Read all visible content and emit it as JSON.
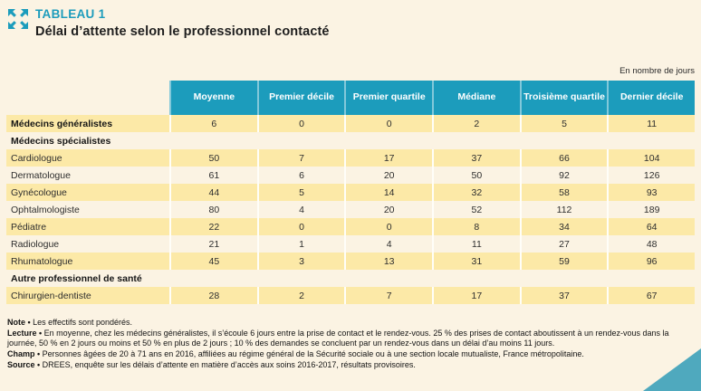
{
  "page": {
    "kicker": "TABLEAU 1",
    "title": "Délai d’attente selon le professionnel contacté",
    "unit_label": "En nombre de jours"
  },
  "colors": {
    "accent_teal": "#1C9CBC",
    "row_yellow": "#FCE9A7",
    "background_cream": "#FBF3E3",
    "corner_triangle": "#4FA9BE",
    "header_text": "#FFFFFF"
  },
  "icons": {
    "expand_icon": "four-arrows-expand"
  },
  "chart_data": {
    "type": "table",
    "title": "Délai d’attente selon le professionnel contacté",
    "unit": "En nombre de jours",
    "columns": [
      "Moyenne",
      "Premier décile",
      "Premier quartile",
      "Médiane",
      "Troisième quartile",
      "Dernier décile"
    ],
    "rows": [
      {
        "label": "Médecins généralistes",
        "bold": true,
        "section": false,
        "shaded": true,
        "values": [
          6,
          0,
          0,
          2,
          5,
          11
        ]
      },
      {
        "label": "Médecins spécialistes",
        "bold": true,
        "section": true,
        "shaded": false,
        "values": []
      },
      {
        "label": "Cardiologue",
        "bold": false,
        "section": false,
        "shaded": true,
        "values": [
          50,
          7,
          17,
          37,
          66,
          104
        ]
      },
      {
        "label": "Dermatologue",
        "bold": false,
        "section": false,
        "shaded": false,
        "values": [
          61,
          6,
          20,
          50,
          92,
          126
        ]
      },
      {
        "label": "Gynécologue",
        "bold": false,
        "section": false,
        "shaded": true,
        "values": [
          44,
          5,
          14,
          32,
          58,
          93
        ]
      },
      {
        "label": "Ophtalmologiste",
        "bold": false,
        "section": false,
        "shaded": false,
        "values": [
          80,
          4,
          20,
          52,
          112,
          189
        ]
      },
      {
        "label": "Pédiatre",
        "bold": false,
        "section": false,
        "shaded": true,
        "values": [
          22,
          0,
          0,
          8,
          34,
          64
        ]
      },
      {
        "label": "Radiologue",
        "bold": false,
        "section": false,
        "shaded": false,
        "values": [
          21,
          1,
          4,
          11,
          27,
          48
        ]
      },
      {
        "label": "Rhumatologue",
        "bold": false,
        "section": false,
        "shaded": true,
        "values": [
          45,
          3,
          13,
          31,
          59,
          96
        ]
      },
      {
        "label": "Autre professionnel de santé",
        "bold": true,
        "section": true,
        "shaded": false,
        "values": []
      },
      {
        "label": "Chirurgien-dentiste",
        "bold": false,
        "section": false,
        "shaded": true,
        "values": [
          28,
          2,
          7,
          17,
          37,
          67
        ]
      }
    ]
  },
  "notes_bullet": "•",
  "notes": [
    {
      "label": "Note",
      "text": "Les effectifs sont pondérés."
    },
    {
      "label": "Lecture",
      "text": "En moyenne, chez les médecins généralistes, il s’écoule 6 jours entre la prise de contact et le rendez-vous. 25 % des prises de contact aboutissent à un rendez-vous dans la journée, 50 % en 2 jours ou moins et 50 % en plus de 2 jours ; 10 % des demandes se concluent par un rendez-vous dans un délai d’au moins 11 jours."
    },
    {
      "label": "Champ",
      "text": "Personnes âgées de 20 à 71 ans en 2016, affiliées au régime général de la Sécurité sociale ou à une section locale mutualiste, France métropolitaine."
    },
    {
      "label": "Source",
      "text": "DREES, enquête sur les délais d’attente en matière d’accès aux soins 2016-2017, résultats provisoires."
    }
  ]
}
